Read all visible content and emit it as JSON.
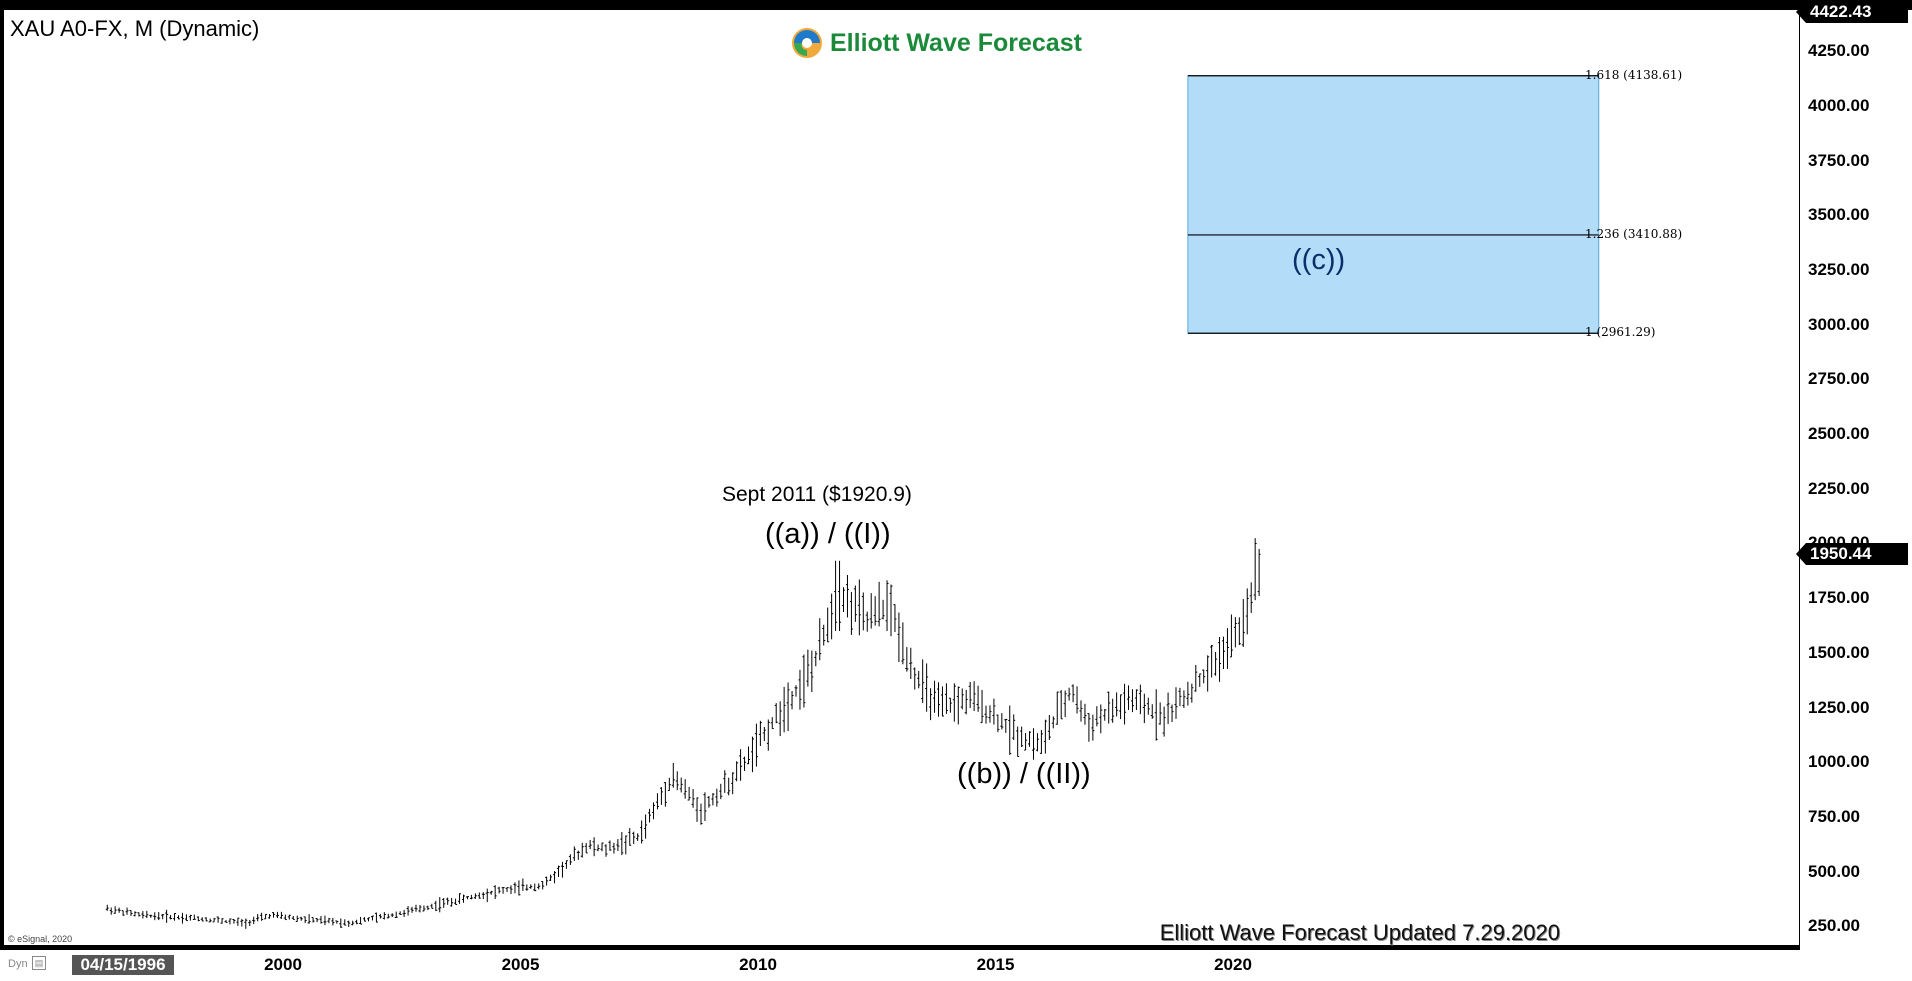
{
  "header": {
    "symbol_title": "XAU A0-FX, M (Dynamic)",
    "logo_text": "Elliott Wave Forecast"
  },
  "footer": {
    "updated": "Elliott Wave Forecast Updated 7.29.2020",
    "copyright": "© eSignal, 2020",
    "dyn_label": "Dyn",
    "start_date": "04/15/1996"
  },
  "annotations": {
    "peak_label": "Sept 2011 ($1920.9)",
    "wave_a": "((a)) / ((I))",
    "wave_b": "((b)) / ((II))",
    "wave_c": "((c))"
  },
  "fib_box": {
    "color": "#b3dcf9",
    "levels": [
      {
        "label": "1.618 (4138.61)",
        "value": 4138.61
      },
      {
        "label": "1.236 (3410.88)",
        "value": 3410.88
      },
      {
        "label": "1 (2961.29)",
        "value": 2961.29
      }
    ],
    "x_start": 2019.05,
    "x_end": 2027.7
  },
  "price_tags": {
    "top": "4422.43",
    "last": "1950.44"
  },
  "chart_data": {
    "type": "ohlc",
    "title": "XAU A0-FX, M (Dynamic)",
    "y_ticks": [
      "250.00",
      "500.00",
      "750.00",
      "1000.00",
      "1250.00",
      "1500.00",
      "1750.00",
      "2000.00",
      "2250.00",
      "2500.00",
      "2750.00",
      "3000.00",
      "3250.00",
      "3500.00",
      "3750.00",
      "4000.00",
      "4250.00"
    ],
    "x_ticks": [
      "2000",
      "2005",
      "2010",
      "2015",
      "2020"
    ],
    "ylim": [
      250,
      4422.43
    ],
    "last_price": 1950.44,
    "anchors": [
      {
        "x": 1996.3,
        "y": 330
      },
      {
        "x": 1997.0,
        "y": 300
      },
      {
        "x": 1998.0,
        "y": 290
      },
      {
        "x": 1999.2,
        "y": 265
      },
      {
        "x": 1999.75,
        "y": 300
      },
      {
        "x": 2000.5,
        "y": 280
      },
      {
        "x": 2001.4,
        "y": 265
      },
      {
        "x": 2002.5,
        "y": 310
      },
      {
        "x": 2003.5,
        "y": 360
      },
      {
        "x": 2004.5,
        "y": 410
      },
      {
        "x": 2005.5,
        "y": 440
      },
      {
        "x": 2006.4,
        "y": 620
      },
      {
        "x": 2006.8,
        "y": 600
      },
      {
        "x": 2007.5,
        "y": 660
      },
      {
        "x": 2008.2,
        "y": 940
      },
      {
        "x": 2008.8,
        "y": 780
      },
      {
        "x": 2009.5,
        "y": 930
      },
      {
        "x": 2010.5,
        "y": 1240
      },
      {
        "x": 2011.2,
        "y": 1450
      },
      {
        "x": 2011.67,
        "y": 1780
      },
      {
        "x": 2012.3,
        "y": 1650
      },
      {
        "x": 2012.75,
        "y": 1720
      },
      {
        "x": 2013.3,
        "y": 1400
      },
      {
        "x": 2013.8,
        "y": 1250
      },
      {
        "x": 2014.5,
        "y": 1290
      },
      {
        "x": 2015.5,
        "y": 1120
      },
      {
        "x": 2015.95,
        "y": 1080
      },
      {
        "x": 2016.6,
        "y": 1330
      },
      {
        "x": 2016.95,
        "y": 1170
      },
      {
        "x": 2017.8,
        "y": 1280
      },
      {
        "x": 2018.6,
        "y": 1210
      },
      {
        "x": 2019.5,
        "y": 1420
      },
      {
        "x": 2020.2,
        "y": 1620
      },
      {
        "x": 2020.58,
        "y": 1950
      }
    ]
  }
}
